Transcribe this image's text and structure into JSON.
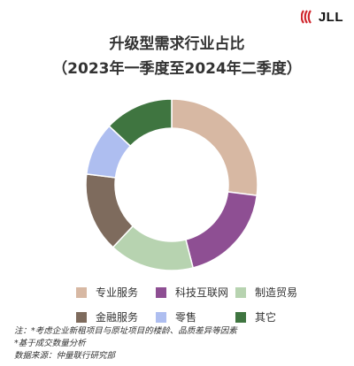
{
  "logo": {
    "text": "JLL"
  },
  "chart_data": {
    "type": "pie",
    "title": "升级型需求行业占比",
    "subtitle": "（2023年一季度至2024年二季度）",
    "categories": [
      "专业服务",
      "科技互联网",
      "制造贸易",
      "金融服务",
      "零售",
      "其它"
    ],
    "values": [
      27,
      19,
      16,
      15,
      10,
      13
    ],
    "colors": [
      "#d7b8a3",
      "#8e4f93",
      "#b7d3b0",
      "#7e6b5d",
      "#aebef0",
      "#3f7540"
    ],
    "legend_position": "bottom"
  },
  "notes": [
    "注：*考虑企业新租项目与原址项目的楼龄、品质差异等因素",
    "*基于成交数量分析",
    "数据来源：仲量联行研究部"
  ]
}
